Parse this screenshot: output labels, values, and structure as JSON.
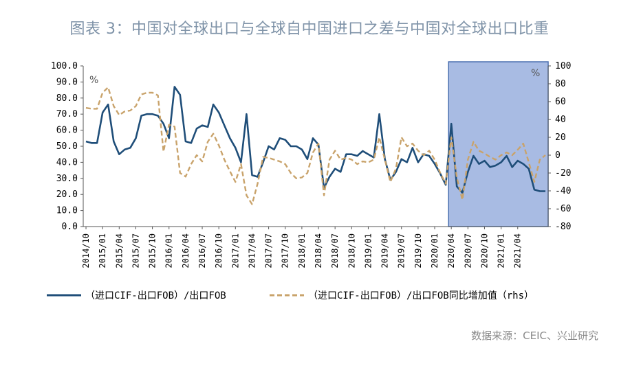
{
  "title": "图表 3：中国对全球出口与全球自中国进口之差与中国对全球出口比重",
  "source": "数据来源：CEIC、兴业研究",
  "colors": {
    "series1": "#1f4e79",
    "series2": "#c9a36b",
    "highlight_fill": "#9fb4e0",
    "highlight_stroke": "#4a6fb0"
  },
  "chart_data": {
    "type": "line",
    "y_left": {
      "min": 0,
      "max": 100,
      "ticks": [
        "100.0",
        "90.0",
        "80.0",
        "70.0",
        "60.0",
        "50.0",
        "40.0",
        "30.0",
        "20.0",
        "10.0",
        "0.0"
      ],
      "unit": "%"
    },
    "y_right": {
      "min": -80,
      "max": 100,
      "ticks": [
        "100",
        "80",
        "60",
        "40",
        "20",
        "0",
        "-20",
        "-40",
        "-60",
        "-80"
      ],
      "unit": "%"
    },
    "x_labels": [
      "2014/10",
      "2015/01",
      "2015/04",
      "2015/07",
      "2015/10",
      "2016/01",
      "2016/04",
      "2016/07",
      "2016/10",
      "2017/01",
      "2017/04",
      "2017/07",
      "2017/10",
      "2018/01",
      "2018/04",
      "2018/07",
      "2018/10",
      "2019/01",
      "2019/04",
      "2019/07",
      "2019/10",
      "2020/01",
      "2020/04",
      "2020/07",
      "2020/10",
      "2021/01",
      "2021/04"
    ],
    "highlight": {
      "from_index": 66,
      "to_index": 77
    },
    "series": [
      {
        "name": "（进口CIF-出口FOB）/出口FOB",
        "axis": "left",
        "style": "solid",
        "values": [
          53,
          52,
          52,
          71,
          76,
          53,
          45,
          48,
          49,
          55,
          69,
          70,
          70,
          69,
          64,
          55,
          87,
          82,
          53,
          52,
          61,
          63,
          62,
          76,
          71,
          63,
          55,
          49,
          40,
          70,
          32,
          31,
          40,
          50,
          48,
          55,
          54,
          50,
          50,
          48,
          42,
          55,
          51,
          24,
          31,
          36,
          34,
          45,
          45,
          44,
          47,
          45,
          43,
          70,
          42,
          29,
          34,
          42,
          40,
          49,
          40,
          45,
          44,
          39,
          33,
          26,
          64,
          25,
          21,
          34,
          44,
          39,
          41,
          37,
          38,
          40,
          44,
          37,
          41,
          39,
          36,
          23,
          22,
          22
        ]
      },
      {
        "name": "（进口CIF-出口FOB）/出口FOB同比增加值（rhs）",
        "axis": "right",
        "style": "dashed",
        "values": [
          53,
          52,
          52,
          70,
          76,
          55,
          45,
          49,
          50,
          55,
          68,
          70,
          70,
          67,
          4,
          34,
          32,
          -20,
          -24,
          -10,
          0,
          -7,
          15,
          24,
          11,
          -5,
          -18,
          -30,
          -10,
          -45,
          -55,
          -32,
          -2,
          -3,
          -5,
          -7,
          -10,
          -20,
          -26,
          -25,
          -20,
          3,
          13,
          -45,
          -5,
          5,
          -5,
          -3,
          -5,
          -10,
          -7,
          -8,
          -5,
          20,
          -5,
          -30,
          -15,
          20,
          10,
          13,
          5,
          0,
          5,
          -5,
          -20,
          -32,
          20,
          -25,
          -50,
          -5,
          15,
          5,
          2,
          -2,
          -5,
          0,
          3,
          0,
          6,
          13,
          -8,
          -30,
          -5,
          0
        ]
      }
    ],
    "legend": [
      "（进口CIF-出口FOB）/出口FOB",
      "（进口CIF-出口FOB）/出口FOB同比增加值（rhs）"
    ]
  }
}
